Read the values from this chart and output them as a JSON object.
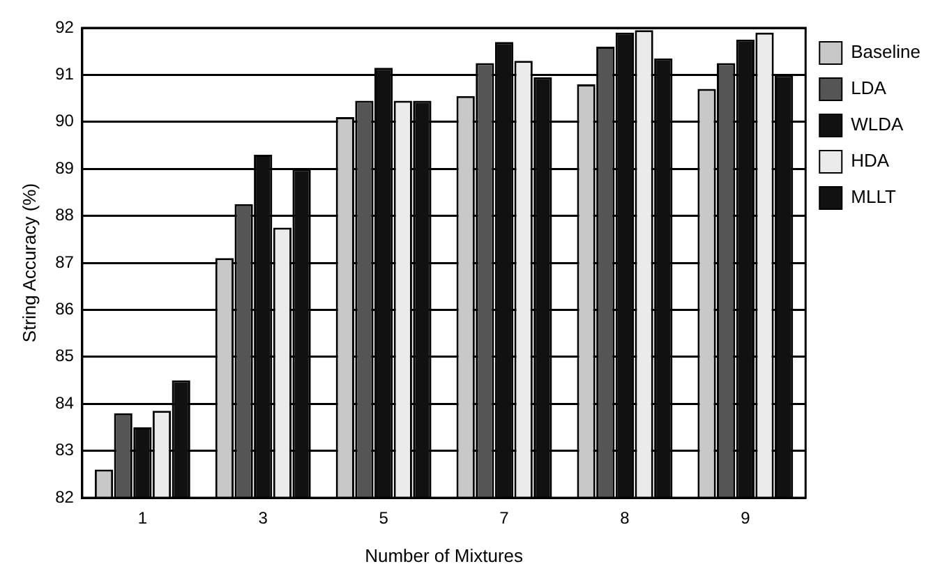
{
  "chart_data": {
    "type": "bar",
    "xlabel": "Number of Mixtures",
    "ylabel": "String Accuracy (%)",
    "categories": [
      "1",
      "3",
      "5",
      "7",
      "8",
      "9"
    ],
    "series": [
      {
        "name": "Baseline",
        "color": "#c8c8c8",
        "values": [
          82.6,
          87.1,
          90.1,
          90.55,
          90.8,
          90.7
        ]
      },
      {
        "name": "LDA",
        "color": "#555555",
        "values": [
          83.8,
          88.25,
          90.45,
          91.25,
          91.6,
          91.25
        ]
      },
      {
        "name": "WLDA",
        "color": "#111111",
        "values": [
          83.5,
          89.3,
          91.15,
          91.7,
          91.9,
          91.75
        ]
      },
      {
        "name": "HDA",
        "color": "#ebebeb",
        "values": [
          83.85,
          87.75,
          90.45,
          91.3,
          91.95,
          91.9
        ]
      },
      {
        "name": "MLLT",
        "color": "#111111",
        "values": [
          84.5,
          89.0,
          90.45,
          90.95,
          91.35,
          91.0
        ]
      }
    ],
    "ylim": [
      82,
      92
    ],
    "yticks": [
      82,
      83,
      84,
      85,
      86,
      87,
      88,
      89,
      90,
      91,
      92
    ],
    "grid": "y",
    "legend": "top right"
  }
}
